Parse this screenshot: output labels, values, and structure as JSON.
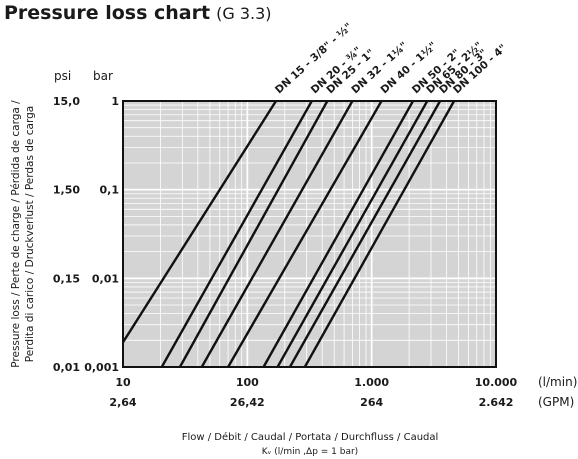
{
  "chart_data": {
    "type": "line",
    "title": "Pressure loss chart",
    "title_suffix": "(G 3.3)",
    "ylabel_lines": [
      "Pressure loss / Perte de charge / Pérdida de carga /",
      "Perdita di carico / Druckverlust / Perdas de carga"
    ],
    "xlabel_line1": "Flow / Débit / Caudal / Portata / Durchfluss / Caudal",
    "xlabel_line2": "Kᵥ (l/min ,Δp = 1 bar)",
    "x_scale": "log",
    "y_scale": "log",
    "xlim": [
      10,
      10000
    ],
    "ylim": [
      0.001,
      1
    ],
    "grid": true,
    "background": "#d4d4d4",
    "line_color": "#111111",
    "x_unit_top": "(l/min)",
    "x_unit_bottom": "(GPM)",
    "y_unit_left": "psi",
    "y_unit_right": "bar",
    "x_ticks": [
      {
        "lpm": 10,
        "label": "10",
        "gpm": "2,64"
      },
      {
        "lpm": 100,
        "label": "100",
        "gpm": "26,42"
      },
      {
        "lpm": 1000,
        "label": "1.000",
        "gpm": "264"
      },
      {
        "lpm": 10000,
        "label": "10.000",
        "gpm": "2.642"
      }
    ],
    "y_ticks": [
      {
        "bar": 1,
        "label": "1",
        "psi": "15,0"
      },
      {
        "bar": 0.1,
        "label": "0,1",
        "psi": "1,50"
      },
      {
        "bar": 0.01,
        "label": "0,01",
        "psi": "0,15"
      },
      {
        "bar": 0.001,
        "label": "0,001",
        "psi": "0,01"
      }
    ],
    "series": [
      {
        "name": "DN 15 - 3/8\" - ½\"",
        "x": [
          10,
          170
        ],
        "y": [
          0.0019,
          1
        ]
      },
      {
        "name": "DN 20 - ¾\"",
        "x": [
          20.5,
          330
        ],
        "y": [
          0.001,
          1
        ]
      },
      {
        "name": "DN 25 - 1\"",
        "x": [
          28.7,
          440
        ],
        "y": [
          0.001,
          1
        ]
      },
      {
        "name": "DN 32 - 1¼\"",
        "x": [
          43,
          700
        ],
        "y": [
          0.001,
          1
        ]
      },
      {
        "name": "DN 40 - 1½\"",
        "x": [
          70,
          1200
        ],
        "y": [
          0.001,
          1
        ]
      },
      {
        "name": "DN 50 - 2\"",
        "x": [
          135,
          2150
        ],
        "y": [
          0.001,
          1
        ]
      },
      {
        "name": "DN 65 - 2½\"",
        "x": [
          175,
          2800
        ],
        "y": [
          0.001,
          1
        ]
      },
      {
        "name": "DN 80 - 3\"",
        "x": [
          220,
          3550
        ],
        "y": [
          0.001,
          1
        ]
      },
      {
        "name": "DN 100 - 4\"",
        "x": [
          290,
          4600
        ],
        "y": [
          0.001,
          1
        ]
      }
    ]
  }
}
